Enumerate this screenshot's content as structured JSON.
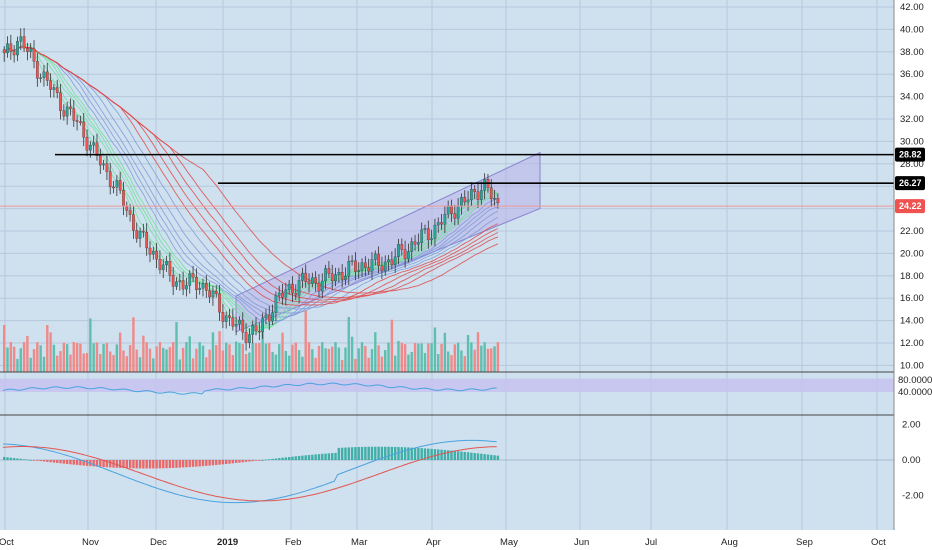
{
  "colors": {
    "background": "#cfe0ef",
    "axis_bg": "#ffffff",
    "grid": "#b6c8dc",
    "up": "#26a69a",
    "down": "#ef5350",
    "vol_up": "#5fbfae",
    "vol_down": "#f08a88",
    "channel_fill": "#b8b3e8",
    "channel_stroke": "#8a84d0",
    "rsi_band": "#c6c2f0",
    "rsi_line": "#4aa3df",
    "macd_line": "#4aa3df",
    "signal_line": "#e0574f",
    "level_line": "#000000",
    "last_line": "#ef9a9a"
  },
  "price_axis": {
    "ticks": [
      "42.00",
      "40.00",
      "38.00",
      "36.00",
      "34.00",
      "32.00",
      "30.00",
      "28.00",
      "26.00",
      "24.00",
      "22.00",
      "20.00",
      "18.00",
      "16.00",
      "14.00",
      "12.00",
      "10.00"
    ]
  },
  "rsi_axis": {
    "ticks": [
      "80.0000",
      "40.0000"
    ]
  },
  "macd_axis": {
    "ticks": [
      "2.00",
      "0.00",
      "-2.00"
    ]
  },
  "time_axis": {
    "labels": [
      "Oct",
      "Nov",
      "Dec",
      "2019",
      "Feb",
      "Mar",
      "Apr",
      "May",
      "Jun",
      "Jul",
      "Aug",
      "Sep",
      "Oct"
    ]
  },
  "price_tags": [
    {
      "label": "28.82",
      "style": "dark"
    },
    {
      "label": "26.27",
      "style": "dark"
    },
    {
      "label": "24.22",
      "style": "red"
    }
  ],
  "chart_data": {
    "type": "candlestick",
    "panes": [
      "price-volume",
      "rsi",
      "macd"
    ],
    "x_labels": [
      "Oct",
      "Nov",
      "Dec",
      "2019",
      "Feb",
      "Mar",
      "Apr",
      "May",
      "Jun",
      "Jul",
      "Aug",
      "Sep",
      "Oct"
    ],
    "ylim": [
      10,
      42
    ],
    "horizontal_levels": [
      28.82,
      26.27
    ],
    "last_price": 24.22,
    "price_path": [
      [
        "Oct",
        37.5
      ],
      [
        "Oct",
        39.2
      ],
      [
        "Oct",
        37.0
      ],
      [
        "Oct",
        35.0
      ],
      [
        "Oct",
        33.0
      ],
      [
        "Nov",
        31.5
      ],
      [
        "Nov",
        29.0
      ],
      [
        "Nov",
        27.0
      ],
      [
        "Nov",
        24.5
      ],
      [
        "Nov",
        21.5
      ],
      [
        "Nov",
        20.0
      ],
      [
        "Dec",
        18.0
      ],
      [
        "Dec",
        17.2
      ],
      [
        "Dec",
        17.5
      ],
      [
        "Dec",
        16.0
      ],
      [
        "Dec",
        14.0
      ],
      [
        "Dec",
        13.0
      ],
      [
        "2019",
        13.0
      ],
      [
        "2019",
        15.5
      ],
      [
        "2019",
        16.8
      ],
      [
        "2019",
        17.5
      ],
      [
        "Feb",
        17.5
      ],
      [
        "Feb",
        18.0
      ],
      [
        "Feb",
        18.5
      ],
      [
        "Feb",
        19.0
      ],
      [
        "Mar",
        19.0
      ],
      [
        "Mar",
        19.5
      ],
      [
        "Mar",
        20.5
      ],
      [
        "Mar",
        21.5
      ],
      [
        "Apr",
        22.5
      ],
      [
        "Apr",
        24.0
      ],
      [
        "Apr",
        24.8
      ],
      [
        "Apr",
        26.2
      ],
      [
        "Apr",
        24.2
      ]
    ],
    "channel": {
      "upper": [
        [
          16.2,
          29.0
        ]
      ],
      "lower": [
        [
          13.0,
          24.0
        ]
      ]
    },
    "rsi_levels": [
      80,
      40
    ],
    "macd_levels": [
      2,
      0,
      -2
    ]
  }
}
